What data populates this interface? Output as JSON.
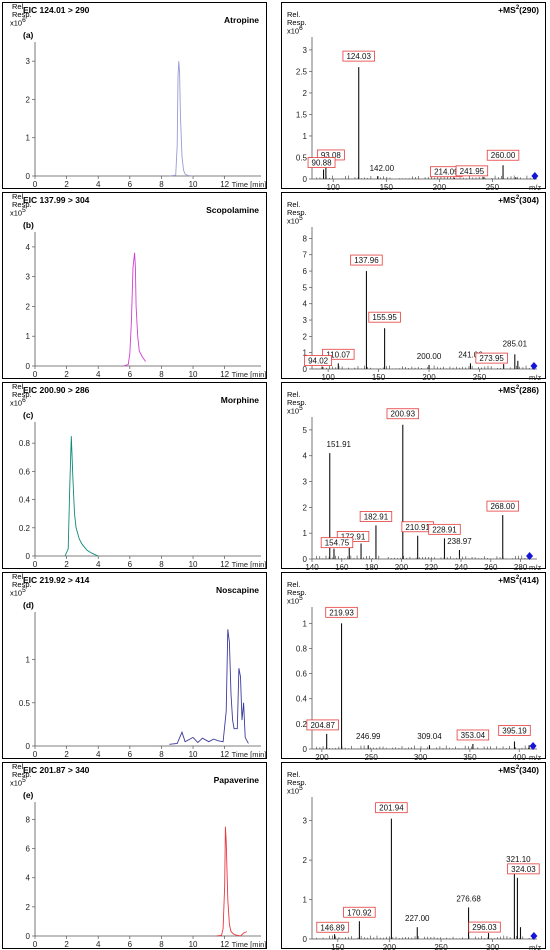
{
  "ylabel": "Rel.\nResp.",
  "chart_data": [
    {
      "type": "line",
      "panel": "eic",
      "title": "EIC 124.01 > 290",
      "compound": "Atropine",
      "letter": "(a)",
      "xlabel": "Time [min]",
      "x_ticks": [
        0,
        2,
        4,
        6,
        8,
        10,
        12
      ],
      "xlim": [
        0,
        14.3
      ],
      "y_exp": "x10^6",
      "y_ticks": [
        0,
        1,
        2,
        3
      ],
      "ylim": [
        0,
        3.5
      ],
      "color": "#9a9ad6",
      "x": [
        8.5,
        8.9,
        9.0,
        9.05,
        9.1,
        9.15,
        9.2,
        9.3,
        9.4,
        9.5,
        9.7,
        10.0
      ],
      "y": [
        0,
        0.02,
        0.8,
        2.6,
        3.0,
        2.7,
        1.6,
        0.5,
        0.15,
        0.05,
        0.01,
        0
      ]
    },
    {
      "type": "bar",
      "panel": "ms",
      "title": "+MS2(290)",
      "xlabel": "m/z",
      "x_ticks": [
        100,
        150,
        200,
        250
      ],
      "xlim": [
        80,
        292
      ],
      "y_exp": "x10^6",
      "y_ticks": [
        0,
        0.5,
        1.0,
        1.5,
        2.0,
        2.5,
        3.0
      ],
      "ylim": [
        0,
        3.3
      ],
      "peaks": [
        [
          90.88,
          0.22
        ],
        [
          93.08,
          0.35
        ],
        [
          124.03,
          2.6
        ],
        [
          142.0,
          0.07
        ],
        [
          214.09,
          0.03
        ],
        [
          241.95,
          0.05
        ],
        [
          260.0,
          0.32
        ],
        [
          272,
          0.04
        ]
      ],
      "labels": [
        {
          "mz": 124.03,
          "text": "124.03",
          "boxed": true
        },
        {
          "mz": 93.08,
          "text": "93.08",
          "boxed": true
        },
        {
          "mz": 90.88,
          "text": "90.88",
          "boxed": true
        },
        {
          "mz": 142.0,
          "text": "142.00",
          "boxed": false
        },
        {
          "mz": 214.09,
          "text": "214.09",
          "boxed": true
        },
        {
          "mz": 241.95,
          "text": "241.95",
          "boxed": true
        },
        {
          "mz": 260.0,
          "text": "260.00",
          "boxed": true
        }
      ],
      "precursor_mz": 290
    },
    {
      "type": "line",
      "panel": "eic",
      "title": "EIC 137.99 > 304",
      "compound": "Scopolamine",
      "letter": "(b)",
      "xlabel": "Time [min]",
      "x_ticks": [
        0,
        2,
        4,
        6,
        8,
        10,
        12
      ],
      "xlim": [
        0,
        14.3
      ],
      "y_exp": "x10^5",
      "y_ticks": [
        0,
        1,
        2,
        3,
        4
      ],
      "ylim": [
        0,
        4.5
      ],
      "color": "#d13fd1",
      "x": [
        5.6,
        5.9,
        6.0,
        6.1,
        6.2,
        6.3,
        6.35,
        6.4,
        6.5,
        6.6,
        6.8,
        7.0
      ],
      "y": [
        0,
        0.05,
        0.4,
        1.5,
        3.3,
        3.8,
        3.3,
        2.0,
        1.0,
        0.5,
        0.3,
        0.15
      ]
    },
    {
      "type": "bar",
      "panel": "ms",
      "title": "+MS2(304)",
      "xlabel": "m/z",
      "x_ticks": [
        100,
        150,
        200,
        250
      ],
      "xlim": [
        84,
        307
      ],
      "y_exp": "x10^5",
      "y_ticks": [
        0,
        1,
        2,
        3,
        4,
        5,
        6,
        7,
        8
      ],
      "ylim": [
        0,
        8.7
      ],
      "peaks": [
        [
          94.02,
          0.15
        ],
        [
          110.07,
          0.35
        ],
        [
          137.96,
          6.0
        ],
        [
          155.95,
          2.5
        ],
        [
          200.0,
          0.25
        ],
        [
          241.06,
          0.35
        ],
        [
          273.95,
          0.3
        ],
        [
          285.01,
          0.9
        ],
        [
          288,
          0.5
        ]
      ],
      "labels": [
        {
          "mz": 137.96,
          "text": "137.96",
          "boxed": true
        },
        {
          "mz": 155.95,
          "text": "155.95",
          "boxed": true
        },
        {
          "mz": 110.07,
          "text": "110.07",
          "boxed": true
        },
        {
          "mz": 94.02,
          "text": "94.02",
          "boxed": true
        },
        {
          "mz": 200.0,
          "text": "200.00",
          "boxed": false
        },
        {
          "mz": 241.06,
          "text": "241.06",
          "boxed": false
        },
        {
          "mz": 273.95,
          "text": "273.95",
          "boxed": true
        },
        {
          "mz": 285.01,
          "text": "285.01",
          "boxed": false
        }
      ],
      "precursor_mz": 304
    },
    {
      "type": "line",
      "panel": "eic",
      "title": "EIC 200.90 > 286",
      "compound": "Morphine",
      "letter": "(c)",
      "xlabel": "Time [min]",
      "x_ticks": [
        0,
        2,
        4,
        6,
        8,
        10,
        12
      ],
      "xlim": [
        0,
        14.3
      ],
      "y_exp": "x10^6",
      "y_ticks": [
        0,
        0.2,
        0.4,
        0.6,
        0.8
      ],
      "ylim": [
        0,
        0.95
      ],
      "color": "#0e8a78",
      "x": [
        1.9,
        2.1,
        2.2,
        2.3,
        2.35,
        2.4,
        2.5,
        2.6,
        2.8,
        3.0,
        3.3,
        3.6,
        4.0
      ],
      "y": [
        0,
        0.05,
        0.5,
        0.85,
        0.7,
        0.55,
        0.3,
        0.2,
        0.12,
        0.08,
        0.04,
        0.02,
        0
      ]
    },
    {
      "type": "bar",
      "panel": "ms",
      "title": "+MS2(286)",
      "xlabel": "m/z",
      "x_ticks": [
        140,
        160,
        180,
        200,
        220,
        240,
        260,
        280
      ],
      "xlim": [
        140,
        291
      ],
      "y_exp": "x10^5",
      "y_ticks": [
        0,
        1,
        2,
        3,
        4,
        5
      ],
      "ylim": [
        0,
        5.5
      ],
      "peaks": [
        [
          151.91,
          4.1
        ],
        [
          154.75,
          0.4
        ],
        [
          165,
          0.6
        ],
        [
          172.91,
          0.6
        ],
        [
          182.91,
          1.3
        ],
        [
          200.93,
          5.2
        ],
        [
          210.91,
          0.9
        ],
        [
          228.91,
          0.8
        ],
        [
          238.97,
          0.35
        ],
        [
          268.0,
          1.7
        ]
      ],
      "labels": [
        {
          "mz": 151.91,
          "text": "151.91",
          "boxed": false
        },
        {
          "mz": 200.93,
          "text": "200.93",
          "boxed": true
        },
        {
          "mz": 182.91,
          "text": "182.91",
          "boxed": true
        },
        {
          "mz": 210.91,
          "text": "210.91",
          "boxed": true
        },
        {
          "mz": 228.91,
          "text": "228.91",
          "boxed": true
        },
        {
          "mz": 172.91,
          "text": "172.91",
          "boxed": true
        },
        {
          "mz": 154.75,
          "text": "154.75",
          "boxed": true
        },
        {
          "mz": 238.97,
          "text": "238.97",
          "boxed": false
        },
        {
          "mz": 268.0,
          "text": "268.00",
          "boxed": true
        }
      ],
      "precursor_mz": 286
    },
    {
      "type": "line",
      "panel": "eic",
      "title": "EIC 219.92 > 414",
      "compound": "Noscapine",
      "letter": "(d)",
      "xlabel": "Time [min]",
      "x_ticks": [
        0,
        2,
        4,
        6,
        8,
        10,
        12
      ],
      "xlim": [
        0,
        14.3
      ],
      "y_exp": "x10^5",
      "y_ticks": [
        0,
        0.5,
        1.0
      ],
      "ylim": [
        0,
        1.55
      ],
      "color": "#3c3c9c",
      "x": [
        8.5,
        9.0,
        9.3,
        9.5,
        9.8,
        10.0,
        10.3,
        10.6,
        11.0,
        11.3,
        11.6,
        11.9,
        12.1,
        12.2,
        12.3,
        12.4,
        12.5,
        12.6,
        12.8,
        12.9,
        13.0,
        13.1,
        13.2,
        13.3,
        13.5
      ],
      "y": [
        0.02,
        0.03,
        0.16,
        0.05,
        0.08,
        0.1,
        0.04,
        0.09,
        0.05,
        0.08,
        0.06,
        0.05,
        0.4,
        1.35,
        1.2,
        0.6,
        0.3,
        0.2,
        0.2,
        0.9,
        0.8,
        0.3,
        0.5,
        0.1,
        0.03
      ]
    },
    {
      "type": "bar",
      "panel": "ms",
      "title": "+MS2(414)",
      "xlabel": "m/z",
      "x_ticks": [
        200,
        250,
        300,
        350,
        400
      ],
      "xlim": [
        190,
        418
      ],
      "y_exp": "x10^5",
      "y_ticks": [
        0,
        0.2,
        0.4,
        0.6,
        0.8,
        1.0
      ],
      "ylim": [
        0,
        1.13
      ],
      "peaks": [
        [
          204.87,
          0.12
        ],
        [
          219.93,
          1.0
        ],
        [
          246.99,
          0.03
        ],
        [
          309.04,
          0.03
        ],
        [
          353.04,
          0.04
        ],
        [
          395.19,
          0.06
        ],
        [
          410,
          0.03
        ]
      ],
      "labels": [
        {
          "mz": 219.93,
          "text": "219.93",
          "boxed": true
        },
        {
          "mz": 204.87,
          "text": "204.87",
          "boxed": true
        },
        {
          "mz": 246.99,
          "text": "246.99",
          "boxed": false
        },
        {
          "mz": 309.04,
          "text": "309.04",
          "boxed": false
        },
        {
          "mz": 353.04,
          "text": "353.04",
          "boxed": true
        },
        {
          "mz": 395.19,
          "text": "395.19",
          "boxed": true
        }
      ],
      "precursor_mz": 414
    },
    {
      "type": "line",
      "panel": "eic",
      "title": "EIC 201.87 > 340",
      "compound": "Papaverine",
      "letter": "(e)",
      "xlabel": "Time [min]",
      "x_ticks": [
        0,
        2,
        4,
        6,
        8,
        10,
        12
      ],
      "xlim": [
        0,
        14.3
      ],
      "y_exp": "x10^5",
      "y_ticks": [
        0,
        2,
        4,
        6,
        8
      ],
      "ylim": [
        0,
        9.2
      ],
      "color": "#e8383d",
      "x": [
        11.5,
        11.8,
        11.9,
        12.0,
        12.05,
        12.1,
        12.2,
        12.3,
        12.4,
        12.6,
        12.8,
        13.0,
        13.2,
        13.4
      ],
      "y": [
        0,
        0.05,
        0.5,
        3.5,
        7.5,
        6.5,
        2.5,
        0.8,
        0.3,
        0.1,
        0.05,
        0,
        0.2,
        0.3
      ]
    },
    {
      "type": "bar",
      "panel": "ms",
      "title": "+MS2(340)",
      "xlabel": "m/z",
      "x_ticks": [
        150,
        200,
        250,
        300
      ],
      "xlim": [
        125,
        343
      ],
      "y_exp": "x10^5",
      "y_ticks": [
        0,
        1,
        2,
        3
      ],
      "ylim": [
        0,
        3.6
      ],
      "peaks": [
        [
          146.89,
          0.12
        ],
        [
          170.92,
          0.45
        ],
        [
          201.94,
          3.05
        ],
        [
          227.0,
          0.3
        ],
        [
          276.68,
          0.8
        ],
        [
          296.03,
          0.15
        ],
        [
          321.1,
          1.65
        ],
        [
          324.03,
          1.55
        ],
        [
          327,
          0.3
        ]
      ],
      "labels": [
        {
          "mz": 201.94,
          "text": "201.94",
          "boxed": true
        },
        {
          "mz": 170.92,
          "text": "170.92",
          "boxed": true
        },
        {
          "mz": 146.89,
          "text": "146.89",
          "boxed": true
        },
        {
          "mz": 227.0,
          "text": "227.00",
          "boxed": false
        },
        {
          "mz": 276.68,
          "text": "276.68",
          "boxed": false
        },
        {
          "mz": 296.03,
          "text": "296.03",
          "boxed": true
        },
        {
          "mz": 321.1,
          "text": "321.10",
          "boxed": false
        },
        {
          "mz": 324.03,
          "text": "324.03",
          "boxed": true
        }
      ],
      "precursor_mz": 340
    }
  ]
}
